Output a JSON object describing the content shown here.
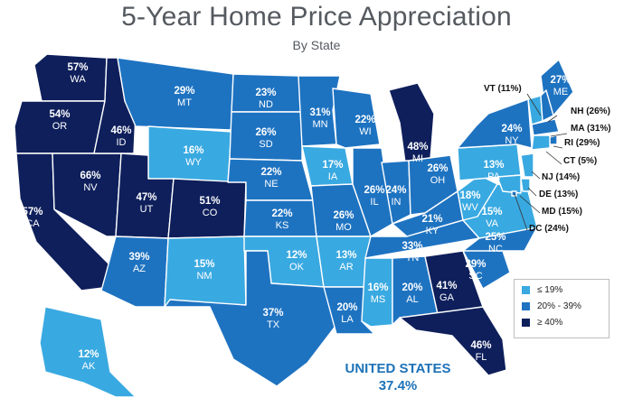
{
  "title": "5-Year Home Price Appreciation",
  "subtitle": "By State",
  "colors": {
    "low": "#39a9e1",
    "mid": "#1e73c1",
    "high": "#0e1f5b"
  },
  "legend": [
    {
      "label": "≤ 19%",
      "color": "#39a9e1"
    },
    {
      "label": "20% - 39%",
      "color": "#1e73c1"
    },
    {
      "label": "≥ 40%",
      "color": "#0e1f5b"
    }
  ],
  "states": {
    "WA": "57%",
    "OR": "54%",
    "CA": "57%",
    "ID": "46%",
    "NV": "66%",
    "AZ": "39%",
    "MT": "29%",
    "WY": "16%",
    "UT": "47%",
    "CO": "51%",
    "NM": "15%",
    "ND": "23%",
    "SD": "26%",
    "NE": "22%",
    "KS": "22%",
    "OK": "12%",
    "TX": "37%",
    "MN": "31%",
    "IA": "17%",
    "MO": "26%",
    "AR": "13%",
    "LA": "20%",
    "WI": "22%",
    "IL": "26%",
    "MS": "16%",
    "AL": "20%",
    "MI": "48%",
    "IN": "24%",
    "OH": "26%",
    "KY": "21%",
    "TN": "33%",
    "GA": "41%",
    "FL": "46%",
    "SC": "29%",
    "NC": "25%",
    "VA": "15%",
    "WV": "18%",
    "PA": "13%",
    "NY": "24%",
    "ME": "27%",
    "AK": "12%"
  },
  "callouts": [
    {
      "abbr": "VT",
      "value": "11%"
    },
    {
      "abbr": "NH",
      "value": "26%"
    },
    {
      "abbr": "MA",
      "value": "31%"
    },
    {
      "abbr": "RI",
      "value": "29%"
    },
    {
      "abbr": "CT",
      "value": "5%"
    },
    {
      "abbr": "NJ",
      "value": "14%"
    },
    {
      "abbr": "DE",
      "value": "13%"
    },
    {
      "abbr": "MD",
      "value": "15%"
    },
    {
      "abbr": "DC",
      "value": "24%"
    }
  ],
  "national": {
    "name": "UNITED STATES",
    "value": "37.4%"
  }
}
